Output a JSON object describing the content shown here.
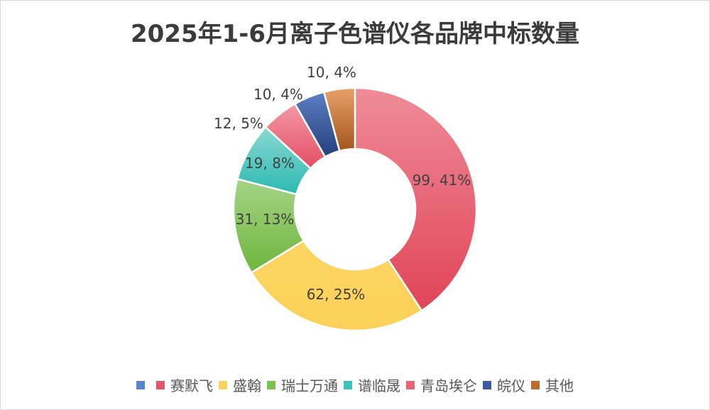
{
  "title": "2025年1-6月离子色谱仪各品牌中标数量",
  "chart_data": {
    "type": "pie",
    "variant": "donut",
    "title": "2025年1-6月离子色谱仪各品牌中标数量",
    "categories": [
      "赛默飞",
      "盛翰",
      "瑞士万通",
      "谱临晟",
      "青岛埃仑",
      "皖仪",
      "其他"
    ],
    "values": [
      99,
      62,
      31,
      19,
      12,
      10,
      10
    ],
    "percents": [
      41,
      25,
      13,
      8,
      5,
      4,
      4
    ],
    "data_labels": [
      "99, 41%",
      "62, 25%",
      "31, 13%",
      "19, 8%",
      "12, 5%",
      "10, 4%",
      "10, 4%"
    ],
    "colors": [
      "#e4566a",
      "#fcd35c",
      "#7cc04e",
      "#3fc4bc",
      "#eb6478",
      "#3b5ba0",
      "#c06a2c"
    ],
    "legend_position": "bottom",
    "start_angle": "12 o'clock, clockwise"
  },
  "legend": {
    "items": [
      {
        "label": "",
        "color": "#5b82d0"
      },
      {
        "label": "赛默飞",
        "color": "#e4566a"
      },
      {
        "label": "盛翰",
        "color": "#fcd35c"
      },
      {
        "label": "瑞士万通",
        "color": "#7cc04e"
      },
      {
        "label": "谱临晟",
        "color": "#3fc4bc"
      },
      {
        "label": "青岛埃仑",
        "color": "#eb6478"
      },
      {
        "label": "皖仪",
        "color": "#3b5ba0"
      },
      {
        "label": "其他",
        "color": "#c06a2c"
      }
    ]
  }
}
